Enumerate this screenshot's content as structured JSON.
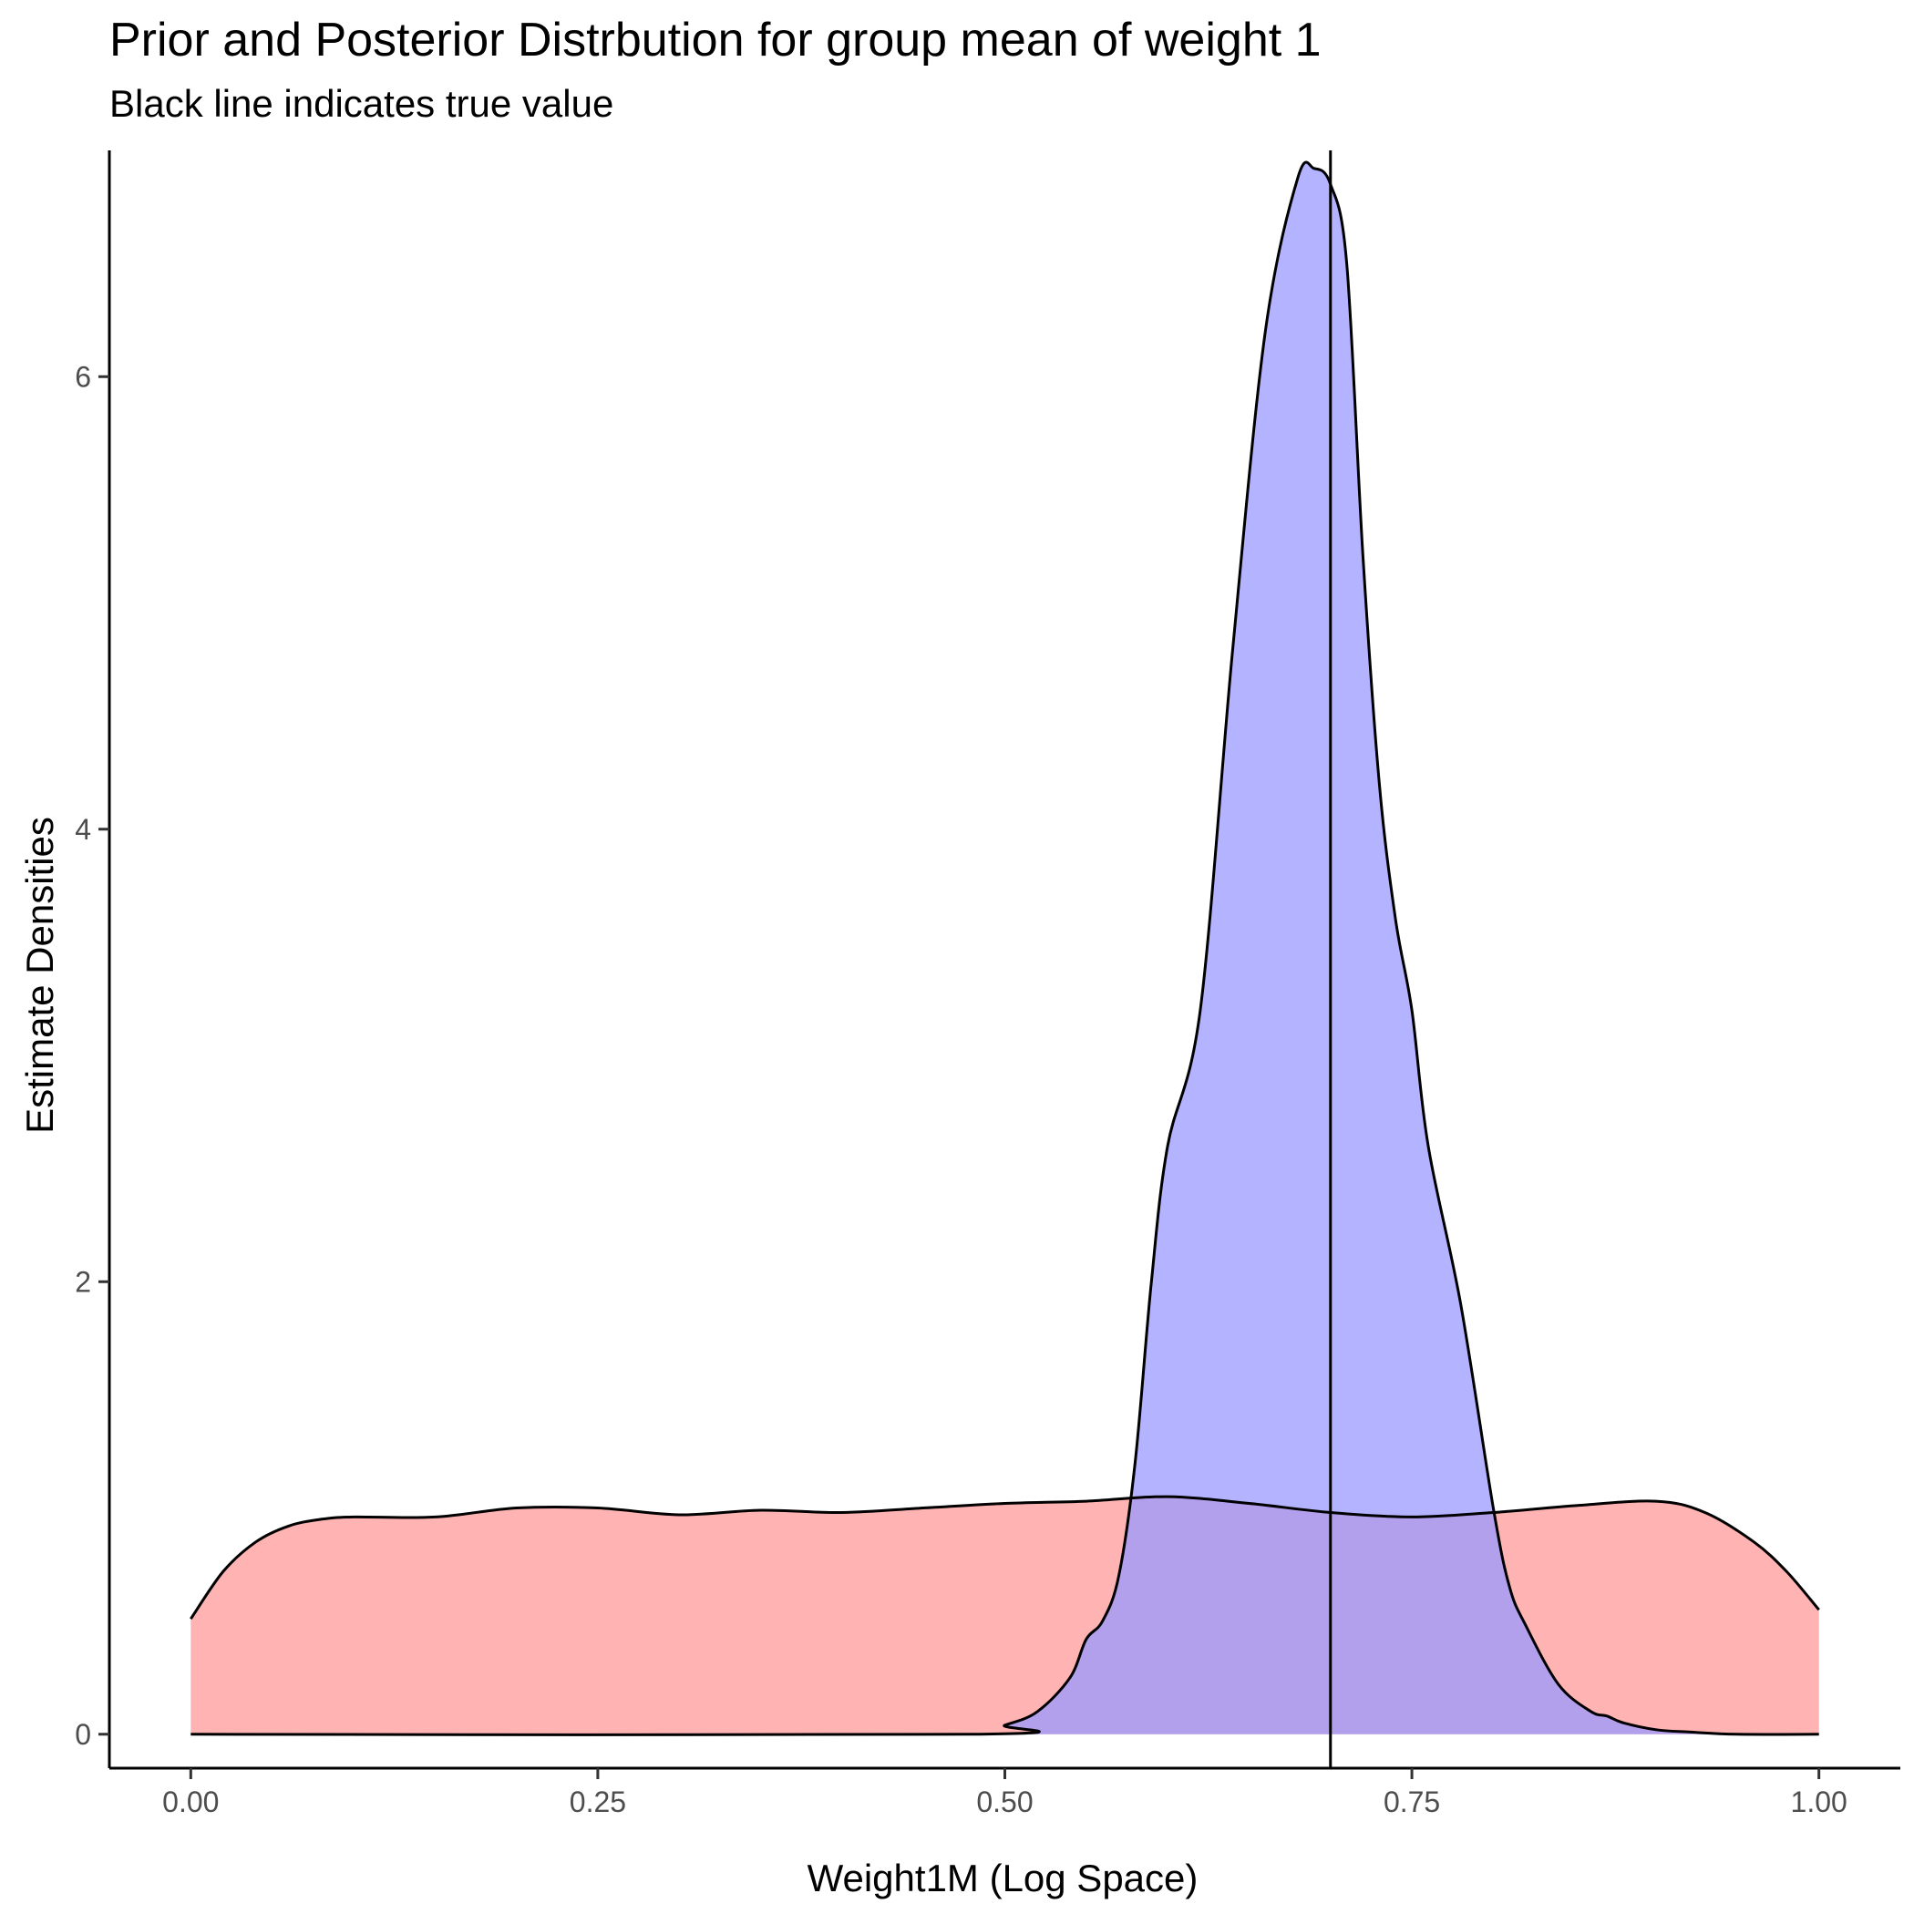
{
  "chart_data": {
    "type": "area",
    "title": "Prior and Posterior Distrbution for group mean of weight 1",
    "subtitle": "Black line indicates true value",
    "xlabel": "Weight1M (Log Space)",
    "ylabel": "Estimate Densities",
    "xlim": [
      -0.05,
      1.05
    ],
    "ylim": [
      -0.15,
      7.0
    ],
    "x_ticks": [
      0.0,
      0.25,
      0.5,
      0.75,
      1.0
    ],
    "x_tick_labels": [
      "0.00",
      "0.25",
      "0.50",
      "0.75",
      "1.00"
    ],
    "y_ticks": [
      0,
      2,
      4,
      6
    ],
    "y_tick_labels": [
      "0",
      "2",
      "4",
      "6"
    ],
    "grid": false,
    "true_value": 0.7,
    "series": [
      {
        "fill": "#FF9999",
        "values_x": [
          0.0,
          0.02,
          0.04,
          0.06,
          0.08,
          0.1,
          0.15,
          0.2,
          0.25,
          0.3,
          0.35,
          0.4,
          0.45,
          0.5,
          0.55,
          0.6,
          0.65,
          0.7,
          0.75,
          0.8,
          0.85,
          0.9,
          0.93,
          0.96,
          0.98,
          1.0
        ],
        "values_y": [
          0.51,
          0.72,
          0.85,
          0.92,
          0.95,
          0.96,
          0.96,
          1.0,
          1.0,
          0.97,
          0.99,
          0.98,
          1.0,
          1.02,
          1.03,
          1.05,
          1.02,
          0.98,
          0.96,
          0.98,
          1.01,
          1.03,
          0.98,
          0.85,
          0.72,
          0.55
        ]
      },
      {
        "fill": "#9999FF",
        "values_x": [
          0.0,
          0.48,
          0.5,
          0.52,
          0.54,
          0.55,
          0.56,
          0.57,
          0.58,
          0.59,
          0.6,
          0.62,
          0.64,
          0.66,
          0.68,
          0.69,
          0.7,
          0.71,
          0.72,
          0.73,
          0.74,
          0.75,
          0.76,
          0.78,
          0.8,
          0.81,
          0.82,
          0.84,
          0.86,
          0.87,
          0.88,
          0.9,
          0.92,
          0.95,
          1.0
        ],
        "values_y": [
          0.0,
          0.0,
          0.04,
          0.1,
          0.25,
          0.42,
          0.5,
          0.7,
          1.2,
          2.0,
          2.6,
          3.2,
          4.8,
          6.2,
          6.88,
          6.92,
          6.85,
          6.5,
          5.2,
          4.2,
          3.6,
          3.2,
          2.6,
          1.9,
          1.0,
          0.65,
          0.48,
          0.22,
          0.1,
          0.08,
          0.05,
          0.02,
          0.01,
          0.0,
          0.0
        ]
      }
    ]
  }
}
